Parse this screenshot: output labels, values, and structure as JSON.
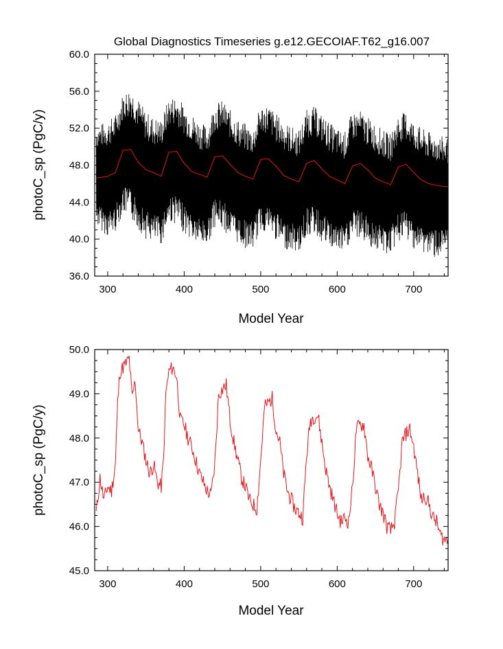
{
  "title": "Global Diagnostics Timeseries g.e12.GECOIAF.T62_g16.007",
  "colors": {
    "raw_series": "#000000",
    "smoothed_series": "#e8141c"
  },
  "chart_data": [
    {
      "type": "line",
      "title": "Global Diagnostics Timeseries g.e12.GECOIAF.T62_g16.007",
      "xlabel": "Model Year",
      "ylabel": "photoC_sp (PgC/y)",
      "xlim": [
        283,
        745
      ],
      "ylim": [
        36.0,
        60.0
      ],
      "xticks": [
        "300",
        "400",
        "500",
        "600",
        "700"
      ],
      "yticks": [
        "36.0",
        "40.0",
        "44.0",
        "48.0",
        "52.0",
        "56.0",
        "60.0"
      ],
      "grid": false,
      "series": [
        {
          "kind": "monthly raw (dense oscillation, approx. envelope)",
          "color": "#000000",
          "x": [
            285,
            300,
            310,
            320,
            330,
            340,
            350,
            360,
            370,
            380,
            390,
            400,
            410,
            420,
            430,
            440,
            450,
            460,
            470,
            480,
            490,
            500,
            510,
            520,
            530,
            540,
            550,
            560,
            570,
            580,
            590,
            600,
            610,
            620,
            630,
            640,
            650,
            660,
            670,
            680,
            690,
            700,
            710,
            720,
            730,
            740,
            745
          ],
          "upper": [
            52.3,
            52.8,
            53.5,
            55.8,
            56.5,
            55.2,
            53.8,
            53.2,
            53.0,
            55.3,
            55.6,
            54.5,
            53.6,
            52.8,
            52.2,
            54.8,
            55.0,
            54.0,
            53.0,
            52.5,
            52.0,
            54.5,
            54.6,
            53.6,
            52.8,
            52.2,
            51.8,
            54.0,
            54.4,
            53.5,
            52.6,
            52.0,
            51.6,
            53.8,
            53.9,
            53.2,
            52.5,
            51.8,
            51.4,
            53.5,
            53.8,
            52.8,
            52.0,
            51.6,
            51.4,
            51.0,
            51.0
          ],
          "lower": [
            41.5,
            40.2,
            40.8,
            42.8,
            42.2,
            41.0,
            40.0,
            39.6,
            39.4,
            41.8,
            41.6,
            40.6,
            39.8,
            39.3,
            39.2,
            41.3,
            41.0,
            40.2,
            39.5,
            39.0,
            38.9,
            40.8,
            40.7,
            39.8,
            39.0,
            38.7,
            38.5,
            40.3,
            40.5,
            39.6,
            39.0,
            38.6,
            38.4,
            40.1,
            40.0,
            39.3,
            38.8,
            38.4,
            38.3,
            39.7,
            39.9,
            39.0,
            38.5,
            38.2,
            38.0,
            38.1,
            38.3
          ]
        },
        {
          "kind": "annual mean",
          "color": "#e8141c",
          "x": [
            285,
            300,
            310,
            320,
            330,
            340,
            350,
            360,
            370,
            380,
            390,
            400,
            410,
            420,
            430,
            440,
            450,
            460,
            470,
            480,
            490,
            500,
            510,
            520,
            530,
            540,
            550,
            560,
            570,
            580,
            590,
            600,
            610,
            620,
            630,
            640,
            650,
            660,
            670,
            680,
            690,
            700,
            710,
            720,
            730,
            740,
            745
          ],
          "y": [
            46.6,
            46.8,
            47.2,
            49.6,
            49.7,
            48.3,
            47.5,
            47.2,
            46.8,
            49.4,
            49.5,
            48.2,
            47.3,
            47.0,
            46.7,
            48.9,
            49.0,
            48.1,
            47.2,
            46.8,
            46.5,
            48.6,
            48.7,
            47.9,
            46.9,
            46.5,
            46.2,
            48.2,
            48.5,
            47.6,
            46.8,
            46.4,
            46.0,
            47.9,
            48.2,
            47.5,
            46.6,
            46.2,
            45.9,
            47.8,
            48.1,
            47.2,
            46.4,
            46.0,
            45.8,
            45.7,
            45.7
          ]
        }
      ]
    },
    {
      "type": "line",
      "title": "",
      "xlabel": "Model Year",
      "ylabel": "photoC_sp (PgC/y)",
      "xlim": [
        283,
        745
      ],
      "ylim": [
        45.0,
        50.0
      ],
      "xticks": [
        "300",
        "400",
        "500",
        "600",
        "700"
      ],
      "yticks": [
        "45.0",
        "46.0",
        "47.0",
        "48.0",
        "49.0",
        "50.0"
      ],
      "grid": false,
      "series": [
        {
          "kind": "annual mean",
          "color": "#e8141c",
          "x": [
            285,
            290,
            295,
            300,
            305,
            310,
            313,
            316,
            320,
            325,
            328,
            332,
            336,
            340,
            345,
            350,
            355,
            360,
            365,
            370,
            373,
            376,
            380,
            385,
            390,
            395,
            400,
            405,
            410,
            415,
            420,
            425,
            430,
            435,
            440,
            445,
            450,
            455,
            460,
            465,
            470,
            475,
            480,
            485,
            490,
            495,
            500,
            505,
            510,
            515,
            520,
            525,
            530,
            535,
            540,
            545,
            550,
            555,
            560,
            565,
            570,
            575,
            580,
            585,
            590,
            595,
            600,
            605,
            610,
            615,
            620,
            625,
            630,
            635,
            640,
            645,
            650,
            655,
            660,
            665,
            670,
            675,
            680,
            685,
            690,
            695,
            700,
            705,
            710,
            715,
            720,
            725,
            730,
            735,
            740,
            745
          ],
          "y": [
            46.3,
            47.1,
            46.6,
            46.9,
            46.8,
            47.4,
            48.8,
            49.5,
            49.6,
            49.7,
            49.8,
            48.9,
            49.3,
            48.2,
            47.9,
            47.5,
            47.2,
            47.4,
            47.0,
            46.9,
            47.5,
            49.0,
            49.5,
            49.6,
            49.4,
            48.4,
            48.3,
            48.0,
            47.8,
            47.5,
            47.2,
            47.0,
            46.8,
            46.7,
            47.4,
            49.0,
            49.1,
            49.2,
            48.4,
            47.9,
            47.5,
            47.1,
            46.9,
            46.6,
            46.5,
            46.4,
            47.5,
            48.7,
            48.8,
            48.9,
            48.2,
            47.9,
            47.2,
            46.8,
            46.6,
            46.4,
            46.3,
            46.2,
            47.6,
            48.4,
            48.5,
            48.5,
            47.9,
            47.3,
            46.9,
            46.6,
            46.3,
            46.1,
            46.2,
            46.1,
            46.9,
            48.2,
            48.3,
            48.3,
            47.6,
            47.3,
            46.9,
            46.5,
            46.3,
            46.0,
            45.9,
            46.1,
            46.8,
            47.9,
            48.1,
            48.2,
            47.8,
            47.2,
            46.6,
            46.7,
            46.5,
            46.2,
            46.1,
            45.8,
            45.7,
            45.7
          ]
        }
      ]
    }
  ]
}
